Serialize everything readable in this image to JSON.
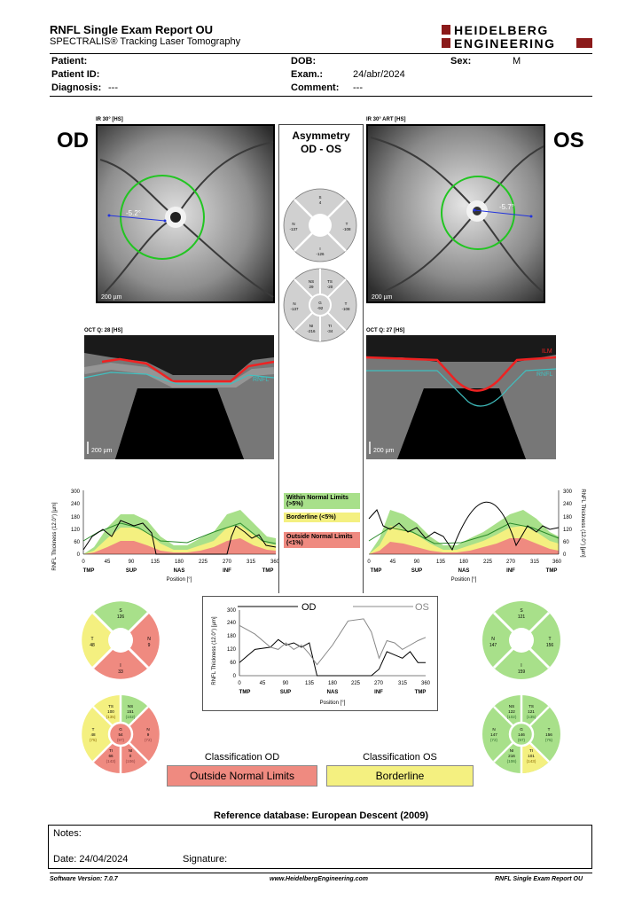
{
  "header": {
    "title": "RNFL Single Exam Report OU",
    "subtitle": "SPECTRALIS® Tracking Laser Tomography",
    "logo_line1": "HEIDELBERG",
    "logo_line2": "ENGINEERING"
  },
  "patient": {
    "patient_label": "Patient:",
    "patient_id_label": "Patient ID:",
    "diagnosis_label": "Diagnosis:",
    "diagnosis_value": "---",
    "dob_label": "DOB:",
    "exam_label": "Exam.:",
    "exam_value": "24/abr/2024",
    "comment_label": "Comment:",
    "comment_value": "---",
    "sex_label": "Sex:",
    "sex_value": "M"
  },
  "eyes": {
    "od": "OD",
    "os": "OS",
    "od_ir_label": "IR 30° [HS]",
    "os_ir_label": "IR 30° ART [HS]",
    "od_ir_angle": "-5.2°",
    "os_ir_angle": "-5.7°",
    "scale_label": "200 µm",
    "od_oct_label": "OCT Q: 28 [HS]",
    "os_oct_label": "OCT Q: 27 [HS]",
    "oct_scale": "200 µm",
    "ilm": "ILM",
    "rnfl": "RNFL"
  },
  "asymmetry": {
    "title_line1": "Asymmetry",
    "title_line2": "OD - OS",
    "quad": {
      "S": "4",
      "N": "-137",
      "T": "-108",
      "I": "-126"
    },
    "sector": {
      "NS": "29",
      "TS": "-20",
      "N": "-137",
      "G": "-92",
      "T": "-108",
      "NI": "-216",
      "TI": "-34"
    }
  },
  "legend": {
    "within": "Within Normal Limits (>5%)",
    "borderline": "Borderline (<5%)",
    "outside": "Outside Normal Limits (<1%)"
  },
  "graph": {
    "ylabel": "RNFL Thickness (12.0°) [µm]",
    "xlabel": "Position [°]",
    "yticks": [
      "0",
      "60",
      "120",
      "180",
      "240",
      "300"
    ],
    "xticks": [
      "0",
      "45",
      "90",
      "135",
      "180",
      "225",
      "270",
      "315",
      "360"
    ],
    "regions": [
      "TMP",
      "SUP",
      "NAS",
      "INF",
      "TMP"
    ],
    "od_series": "OD",
    "os_series": "OS"
  },
  "chart_data": [
    {
      "type": "line",
      "ylabel": "RNFL Thickness (12.0°) [µm]",
      "xlabel": "Position [°]",
      "xlim": [
        0,
        360
      ],
      "ylim": [
        0,
        300
      ],
      "x": [
        0,
        30,
        60,
        75,
        90,
        105,
        120,
        135,
        150,
        180,
        210,
        240,
        255,
        270,
        285,
        300,
        315,
        330,
        345,
        360
      ],
      "series": [
        {
          "name": "OD",
          "values": [
            60,
            120,
            130,
            165,
            140,
            150,
            130,
            150,
            0,
            0,
            0,
            0,
            0,
            30,
            110,
            95,
            80,
            110,
            60,
            60
          ]
        },
        {
          "name": "OS",
          "values": [
            230,
            190,
            130,
            120,
            150,
            120,
            140,
            100,
            50,
            140,
            250,
            260,
            200,
            80,
            160,
            150,
            120,
            140,
            160,
            175
          ]
        }
      ]
    }
  ],
  "od_sectors": {
    "quad": {
      "S": "126",
      "T": "48",
      "N": "9",
      "I": "33"
    },
    "sector": {
      "TS": "100",
      "TS_ref": "(135)",
      "NS": "151",
      "NS_ref": "(102)",
      "T": "48",
      "T_ref": "(75)",
      "G": "54",
      "G_ref": "(97)",
      "N": "9",
      "N_ref": "(72)",
      "TI": "66",
      "TI_ref": "(143)",
      "NI": "0",
      "NI_ref": "(106)"
    }
  },
  "os_sectors": {
    "quad": {
      "S": "121",
      "N": "147",
      "T": "156",
      "I": "159"
    },
    "sector": {
      "NS": "122",
      "NS_ref": "(102)",
      "TS": "121",
      "TS_ref": "(135)",
      "N": "147",
      "N_ref": "(72)",
      "G": "146",
      "G_ref": "(97)",
      "T": "156",
      "T_ref": "(75)",
      "NI": "216",
      "NI_ref": "(106)",
      "TI": "101",
      "TI_ref": "(143)"
    }
  },
  "classification": {
    "od_label": "Classification OD",
    "od_value": "Outside Normal Limits",
    "os_label": "Classification OS",
    "os_value": "Borderline"
  },
  "reference": "Reference database: European Descent (2009)",
  "notes": {
    "notes_label": "Notes:",
    "date_label": "Date: 24/04/2024",
    "signature_label": "Signature:"
  },
  "footer": {
    "software": "Software Version: 7.0.7",
    "url": "www.HeidelbergEngineering.com",
    "report": "RNFL Single Exam Report OU"
  },
  "colors": {
    "green": "#a8e08a",
    "yellow": "#f4f080",
    "red": "#ef8a80",
    "grey": "#cfcfcf"
  }
}
